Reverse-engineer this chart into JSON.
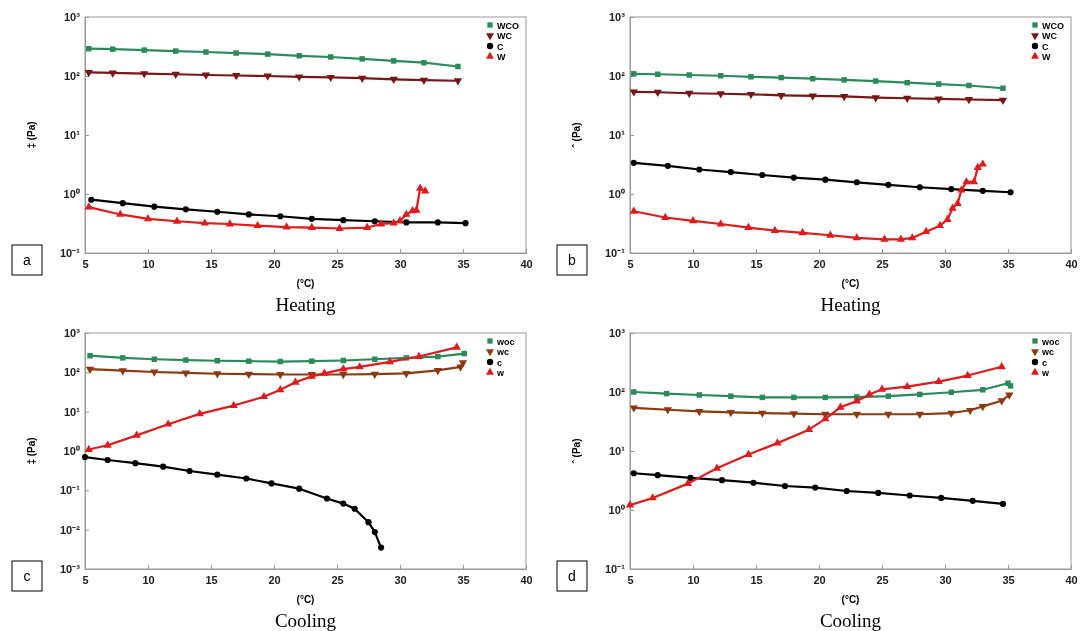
{
  "chart_data": [
    {
      "type": "line",
      "title": "Heating",
      "xlabel": "(°C)",
      "ylabel": "‡ (Pa)",
      "annotations": [
        "a"
      ],
      "log": "y",
      "xlim": [
        5,
        40
      ],
      "xticks": [
        5,
        10,
        15,
        20,
        25,
        30,
        35,
        40
      ],
      "ylim": [
        0.1,
        1000
      ],
      "yticks": [
        {
          "value": 0.1,
          "label": "10⁻¹"
        },
        {
          "value": 1,
          "label": "10⁰"
        },
        {
          "value": 10,
          "label": "10¹"
        },
        {
          "value": 100,
          "label": "10²"
        },
        {
          "value": 1000,
          "label": "10³"
        }
      ],
      "legend": "top right",
      "grid": false,
      "line_style": "solid",
      "series": [
        {
          "name": "WCO",
          "color": "#2a8a5a",
          "marker": "square",
          "x": [
            5.3,
            7.2,
            9.7,
            12.2,
            14.6,
            17,
            19.5,
            22,
            24.5,
            27,
            29.5,
            31.9,
            34.6
          ],
          "values": [
            290,
            285,
            275,
            265,
            255,
            245,
            235,
            220,
            210,
            195,
            180,
            168,
            145
          ]
        },
        {
          "name": "WC",
          "color": "#7a1515",
          "marker": "triangle-down",
          "x": [
            5.3,
            7.2,
            9.7,
            12.2,
            14.6,
            17,
            19.5,
            22,
            24.5,
            27,
            29.5,
            31.9,
            34.6
          ],
          "values": [
            115,
            113,
            110,
            107,
            104,
            102,
            100,
            97,
            95,
            92,
            88,
            85,
            83
          ]
        },
        {
          "name": "C",
          "color": "#000000",
          "marker": "circle",
          "x": [
            5.5,
            8,
            10.5,
            13,
            15.5,
            18,
            20.5,
            23,
            25.5,
            28,
            30.5,
            33,
            35.2
          ],
          "values": [
            0.8,
            0.7,
            0.61,
            0.55,
            0.5,
            0.45,
            0.42,
            0.38,
            0.36,
            0.345,
            0.33,
            0.33,
            0.32
          ]
        },
        {
          "name": "W",
          "color": "#e01b1b",
          "marker": "triangle",
          "x": [
            5.3,
            7.8,
            10,
            12.3,
            14.5,
            16.5,
            18.7,
            21,
            23,
            25.2,
            27.4,
            28.5,
            29.5,
            30,
            30.5,
            31,
            31.3,
            31.6,
            32
          ],
          "values": [
            0.6,
            0.45,
            0.38,
            0.345,
            0.32,
            0.31,
            0.29,
            0.275,
            0.27,
            0.26,
            0.27,
            0.31,
            0.32,
            0.35,
            0.45,
            0.52,
            0.53,
            1.25,
            1.12
          ]
        }
      ]
    },
    {
      "type": "line",
      "title": "Heating",
      "xlabel": "(°C)",
      "ylabel": "ˆ (Pa)",
      "annotations": [
        "b"
      ],
      "log": "y",
      "xlim": [
        5,
        40
      ],
      "xticks": [
        5,
        10,
        15,
        20,
        25,
        30,
        35,
        40
      ],
      "ylim": [
        0.1,
        1000
      ],
      "yticks": [
        {
          "value": 0.1,
          "label": "10⁻¹"
        },
        {
          "value": 1,
          "label": "10⁰"
        },
        {
          "value": 10,
          "label": "10¹"
        },
        {
          "value": 100,
          "label": "10²"
        },
        {
          "value": 1000,
          "label": "10³"
        }
      ],
      "legend": "top right",
      "grid": false,
      "line_style": "solid",
      "series": [
        {
          "name": "WCO",
          "color": "#2a8a5a",
          "marker": "square",
          "x": [
            5.3,
            7.2,
            9.7,
            12.2,
            14.6,
            17,
            19.5,
            22,
            24.5,
            27,
            29.5,
            31.9,
            34.6
          ],
          "values": [
            109,
            107,
            104,
            101,
            97,
            94,
            90,
            86,
            82,
            77,
            73,
            69,
            62
          ]
        },
        {
          "name": "WC",
          "color": "#7a1515",
          "marker": "triangle-down",
          "x": [
            5.3,
            7.2,
            9.7,
            12.2,
            14.6,
            17,
            19.5,
            22,
            24.5,
            27,
            29.5,
            31.9,
            34.6
          ],
          "values": [
            54,
            53,
            51,
            50,
            49,
            47,
            46,
            45,
            43,
            42,
            41,
            40,
            39
          ]
        },
        {
          "name": "C",
          "color": "#000000",
          "marker": "circle",
          "x": [
            5.3,
            8,
            10.5,
            13,
            15.5,
            18,
            20.5,
            23,
            25.5,
            28,
            30.5,
            33,
            35.2
          ],
          "values": [
            3.37,
            3,
            2.6,
            2.35,
            2.1,
            1.9,
            1.75,
            1.58,
            1.43,
            1.3,
            1.21,
            1.13,
            1.07
          ]
        },
        {
          "name": "W",
          "color": "#e01b1b",
          "marker": "triangle",
          "x": [
            5.3,
            7.8,
            10,
            12.2,
            14.4,
            16.5,
            18.7,
            20.9,
            23,
            25.2,
            26.5,
            27.4,
            28.5,
            29.6,
            30.2,
            30.6,
            31,
            31.3,
            31.7,
            32.3,
            32.6,
            33
          ],
          "values": [
            0.51,
            0.4,
            0.35,
            0.31,
            0.27,
            0.24,
            0.22,
            0.2,
            0.18,
            0.17,
            0.17,
            0.18,
            0.23,
            0.29,
            0.37,
            0.57,
            0.69,
            1.16,
            1.6,
            1.6,
            2.8,
            3.2
          ]
        }
      ]
    },
    {
      "type": "line",
      "title": "Cooling",
      "xlabel": "(°C)",
      "ylabel": "‡ (Pa)",
      "annotations": [
        "c"
      ],
      "log": "y",
      "xlim": [
        5,
        40
      ],
      "xticks": [
        5,
        10,
        15,
        20,
        25,
        30,
        35,
        40
      ],
      "ylim": [
        0.001,
        1000
      ],
      "yticks": [
        {
          "value": 0.001,
          "label": "10⁻³"
        },
        {
          "value": 0.01,
          "label": "10⁻²"
        },
        {
          "value": 0.1,
          "label": "10⁻¹"
        },
        {
          "value": 1,
          "label": "10⁰"
        },
        {
          "value": 10,
          "label": "10¹"
        },
        {
          "value": 100,
          "label": "10²"
        },
        {
          "value": 1000,
          "label": "10³"
        }
      ],
      "legend": "top right",
      "grid": false,
      "line_style": "solid",
      "series": [
        {
          "name": "woc",
          "color": "#2a8a5a",
          "marker": "square",
          "x": [
            5.4,
            8,
            10.5,
            13,
            15.5,
            18,
            20.5,
            23,
            25.5,
            28,
            30.5,
            33,
            35.1
          ],
          "values": [
            265,
            233,
            215,
            205,
            197,
            192,
            188,
            192,
            200,
            215,
            233,
            252,
            300
          ]
        },
        {
          "name": "wc",
          "color": "#8b3a10",
          "marker": "triangle-down",
          "x": [
            5.4,
            8,
            10.5,
            13,
            15.5,
            18,
            20.5,
            23,
            25.5,
            28,
            30.5,
            33,
            34.8,
            35
          ],
          "values": [
            121,
            110,
            102,
            97,
            92,
            90,
            88,
            88,
            88,
            90,
            94,
            112,
            137,
            176
          ]
        },
        {
          "name": "c",
          "color": "#000000",
          "marker": "circle",
          "x": [
            5,
            6.8,
            9,
            11.2,
            13.3,
            15.5,
            17.8,
            19.8,
            22,
            24.2,
            25.5,
            26.4,
            27.5,
            28,
            28.5
          ],
          "values": [
            0.7,
            0.59,
            0.49,
            0.4,
            0.31,
            0.25,
            0.2,
            0.15,
            0.11,
            0.062,
            0.046,
            0.034,
            0.0155,
            0.0087,
            0.0035
          ]
        },
        {
          "name": "w",
          "color": "#e01b1b",
          "marker": "triangle",
          "x": [
            5.3,
            6.8,
            9.1,
            11.6,
            14.1,
            16.8,
            19.2,
            20.5,
            21.7,
            23,
            24,
            25.5,
            26.8,
            29.2,
            31.5,
            34.5
          ],
          "values": [
            1.09,
            1.4,
            2.5,
            4.8,
            8.8,
            14.3,
            24,
            36,
            56,
            79,
            94,
            121,
            137,
            185,
            253,
            430
          ]
        }
      ]
    },
    {
      "type": "line",
      "title": "Cooling",
      "xlabel": "(°C)",
      "ylabel": "ˆ (Pa)",
      "annotations": [
        "d"
      ],
      "log": "y",
      "xlim": [
        5,
        40
      ],
      "xticks": [
        5,
        10,
        15,
        20,
        25,
        30,
        35,
        40
      ],
      "ylim": [
        0.1,
        1000
      ],
      "yticks": [
        {
          "value": 0.1,
          "label": "10⁻¹"
        },
        {
          "value": 1,
          "label": "10⁰"
        },
        {
          "value": 10,
          "label": "10¹"
        },
        {
          "value": 100,
          "label": "10²"
        },
        {
          "value": 1000,
          "label": "10³"
        }
      ],
      "legend": "top right",
      "grid": false,
      "line_style": "solid",
      "series": [
        {
          "name": "woc",
          "color": "#2a8a5a",
          "marker": "square",
          "x": [
            5.3,
            7.9,
            10.5,
            13,
            15.5,
            18,
            20.5,
            23,
            25.5,
            28,
            30.5,
            33,
            35,
            35.2
          ],
          "values": [
            100,
            94,
            89,
            85,
            81,
            81,
            81,
            82,
            85,
            91,
            99,
            109,
            141,
            127
          ]
        },
        {
          "name": "wc",
          "color": "#8b3a10",
          "marker": "triangle-down",
          "x": [
            5.3,
            8,
            10.5,
            13,
            15.5,
            18,
            20.5,
            23,
            25.5,
            28,
            30.5,
            32,
            33,
            34.5,
            35.1
          ],
          "values": [
            54,
            50,
            47,
            45,
            44,
            43,
            42,
            42,
            42,
            42,
            44,
            49,
            57,
            71,
            89
          ]
        },
        {
          "name": "c",
          "color": "#000000",
          "marker": "circle",
          "x": [
            5.3,
            7.2,
            9.8,
            12.3,
            14.8,
            17.3,
            19.7,
            22.2,
            24.7,
            27.2,
            29.7,
            32.2,
            34.6
          ],
          "values": [
            4.2,
            3.9,
            3.5,
            3.2,
            2.9,
            2.55,
            2.4,
            2.1,
            1.95,
            1.76,
            1.6,
            1.43,
            1.27
          ]
        },
        {
          "name": "w",
          "color": "#e01b1b",
          "marker": "triangle",
          "x": [
            5,
            6.8,
            9.6,
            11.9,
            14.4,
            16.7,
            19.2,
            20.5,
            21.7,
            23,
            24,
            25,
            27,
            29.5,
            31.8,
            34.5
          ],
          "values": [
            1.21,
            1.6,
            2.8,
            5.1,
            8.7,
            13.6,
            23,
            35,
            55,
            70,
            91,
            111,
            123,
            150,
            190,
            268
          ]
        }
      ]
    }
  ]
}
